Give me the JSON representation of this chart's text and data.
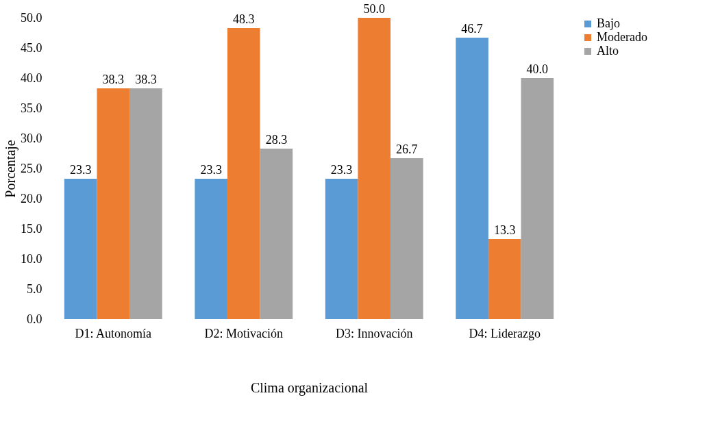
{
  "chart_data": {
    "type": "bar",
    "xlabel": "Clima organizacional",
    "ylabel": "Porcentaje",
    "categories": [
      "D1: Autonomía",
      "D2: Motivación",
      "D3: Innovación",
      "D4: Liderazgo"
    ],
    "series": [
      {
        "name": "Bajo",
        "color": "#5b9bd5",
        "values": [
          23.3,
          23.3,
          23.3,
          46.7
        ],
        "value_labels": [
          "23.3",
          "23.3",
          "23.3",
          "46.7"
        ]
      },
      {
        "name": "Moderado",
        "color": "#ed7d31",
        "values": [
          38.3,
          48.3,
          50.0,
          13.3
        ],
        "value_labels": [
          "38.3",
          "48.3",
          "50.0",
          "13.3"
        ]
      },
      {
        "name": "Alto",
        "color": "#a5a5a5",
        "values": [
          38.3,
          28.3,
          26.7,
          40.0
        ],
        "value_labels": [
          "38.3",
          "28.3",
          "26.7",
          "40.0"
        ]
      }
    ],
    "ylim": [
      0,
      50
    ],
    "yticks": [
      {
        "value": 0,
        "label": "0.0"
      },
      {
        "value": 5,
        "label": "5.0"
      },
      {
        "value": 10,
        "label": "10.0"
      },
      {
        "value": 15,
        "label": "15.0"
      },
      {
        "value": 20,
        "label": "20.0"
      },
      {
        "value": 25,
        "label": "25.0"
      },
      {
        "value": 30,
        "label": "30.0"
      },
      {
        "value": 35,
        "label": "35.0"
      },
      {
        "value": 40,
        "label": "40.0"
      },
      {
        "value": 45,
        "label": "45.0"
      },
      {
        "value": 50,
        "label": "50.0"
      }
    ],
    "grid": false,
    "legend": "right"
  }
}
